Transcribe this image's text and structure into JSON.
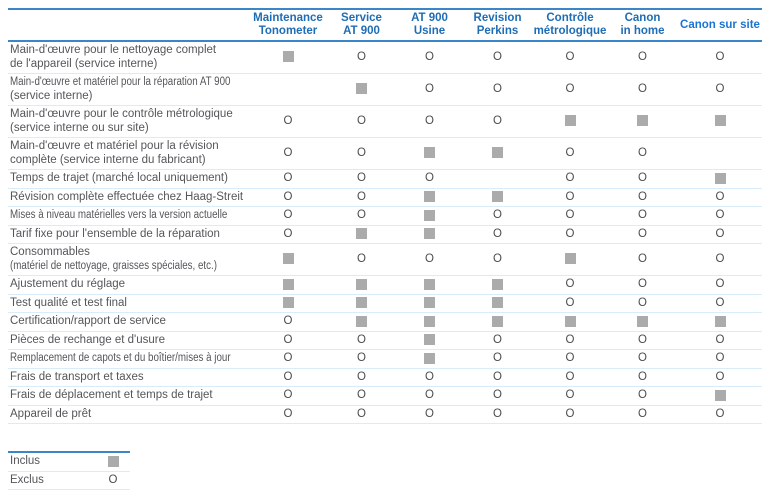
{
  "table": {
    "columns": [
      {
        "lines": [
          "Maintenance",
          "Tonometer"
        ],
        "highlight": false
      },
      {
        "lines": [
          "Service",
          "AT 900"
        ],
        "highlight": false
      },
      {
        "lines": [
          "AT 900",
          "Usine"
        ],
        "highlight": false
      },
      {
        "lines": [
          "Revision",
          "Perkins"
        ],
        "highlight": false
      },
      {
        "lines": [
          "Contrôle",
          "métrologique"
        ],
        "highlight": false
      },
      {
        "lines": [
          "Canon",
          "in home"
        ],
        "highlight": false
      },
      {
        "lines": [
          "Canon sur site"
        ],
        "highlight": true
      }
    ],
    "rows": [
      {
        "lines": [
          "Main-d'œuvre pour le nettoyage complet",
          "de l'appareil (service interne)"
        ],
        "cells": [
          "inclus",
          "exclus",
          "exclus",
          "exclus",
          "exclus",
          "exclus",
          "exclus"
        ]
      },
      {
        "lines": [
          "Main-d'œuvre et matériel pour la réparation AT 900",
          "(service interne)"
        ],
        "cells": [
          "",
          "inclus",
          "exclus",
          "exclus",
          "exclus",
          "exclus",
          "exclus"
        ]
      },
      {
        "lines": [
          "Main-d'œuvre pour le contrôle métrologique",
          "(service interne ou sur site)"
        ],
        "cells": [
          "exclus",
          "exclus",
          "exclus",
          "exclus",
          "inclus",
          "inclus",
          "inclus"
        ]
      },
      {
        "lines": [
          "Main-d'œuvre et matériel pour la révision",
          "complète (service interne du fabricant)"
        ],
        "cells": [
          "exclus",
          "exclus",
          "inclus",
          "inclus",
          "exclus",
          "exclus",
          ""
        ]
      },
      {
        "lines": [
          "Temps de trajet (marché local uniquement)"
        ],
        "cells": [
          "exclus",
          "exclus",
          "exclus",
          "",
          "exclus",
          "exclus",
          "inclus"
        ]
      },
      {
        "lines": [
          "Révision complète effectuée chez Haag-Streit"
        ],
        "cells": [
          "exclus",
          "exclus",
          "inclus",
          "inclus",
          "exclus",
          "exclus",
          "exclus"
        ]
      },
      {
        "lines": [
          "Mises à niveau matérielles vers la version actuelle"
        ],
        "cells": [
          "exclus",
          "exclus",
          "inclus",
          "exclus",
          "exclus",
          "exclus",
          "exclus"
        ]
      },
      {
        "lines": [
          "Tarif fixe pour l'ensemble de la réparation"
        ],
        "cells": [
          "exclus",
          "inclus",
          "inclus",
          "exclus",
          "exclus",
          "exclus",
          "exclus"
        ]
      },
      {
        "lines": [
          "Consommables",
          "(matériel de nettoyage, graisses spéciales, etc.)"
        ],
        "cells": [
          "inclus",
          "exclus",
          "exclus",
          "exclus",
          "inclus",
          "exclus",
          "exclus"
        ]
      },
      {
        "lines": [
          "Ajustement du réglage"
        ],
        "cells": [
          "inclus",
          "inclus",
          "inclus",
          "inclus",
          "exclus",
          "exclus",
          "exclus"
        ]
      },
      {
        "lines": [
          "Test qualité et test final"
        ],
        "cells": [
          "inclus",
          "inclus",
          "inclus",
          "inclus",
          "exclus",
          "exclus",
          "exclus"
        ]
      },
      {
        "lines": [
          "Certification/rapport de service"
        ],
        "cells": [
          "exclus",
          "inclus",
          "inclus",
          "inclus",
          "inclus",
          "inclus",
          "inclus"
        ]
      },
      {
        "lines": [
          "Pièces de rechange et d'usure"
        ],
        "cells": [
          "exclus",
          "exclus",
          "inclus",
          "exclus",
          "exclus",
          "exclus",
          "exclus"
        ]
      },
      {
        "lines": [
          "Remplacement de capots et du boîtier/mises à jour"
        ],
        "cells": [
          "exclus",
          "exclus",
          "inclus",
          "exclus",
          "exclus",
          "exclus",
          "exclus"
        ]
      },
      {
        "lines": [
          "Frais de transport et taxes"
        ],
        "cells": [
          "exclus",
          "exclus",
          "exclus",
          "exclus",
          "exclus",
          "exclus",
          "exclus"
        ]
      },
      {
        "lines": [
          "Frais de déplacement et temps de trajet"
        ],
        "cells": [
          "exclus",
          "exclus",
          "exclus",
          "exclus",
          "exclus",
          "exclus",
          "inclus"
        ]
      },
      {
        "lines": [
          "Appareil de prêt"
        ],
        "cells": [
          "exclus",
          "exclus",
          "exclus",
          "exclus",
          "exclus",
          "exclus",
          "exclus"
        ]
      }
    ],
    "symbols": {
      "exclus": "O"
    }
  },
  "legend": {
    "items": [
      {
        "label": "Inclus",
        "symbol": "inclus"
      },
      {
        "label": "Exclus",
        "symbol": "exclus"
      }
    ]
  },
  "colors": {
    "header_blue": "#1e6db5",
    "header_blue_highlight": "#1a74d4",
    "thick_border_blue": "#3a86c8",
    "row_divider_blue": "#d9ecfa",
    "square_gray": "#ababab",
    "body_text": "#55565a"
  }
}
